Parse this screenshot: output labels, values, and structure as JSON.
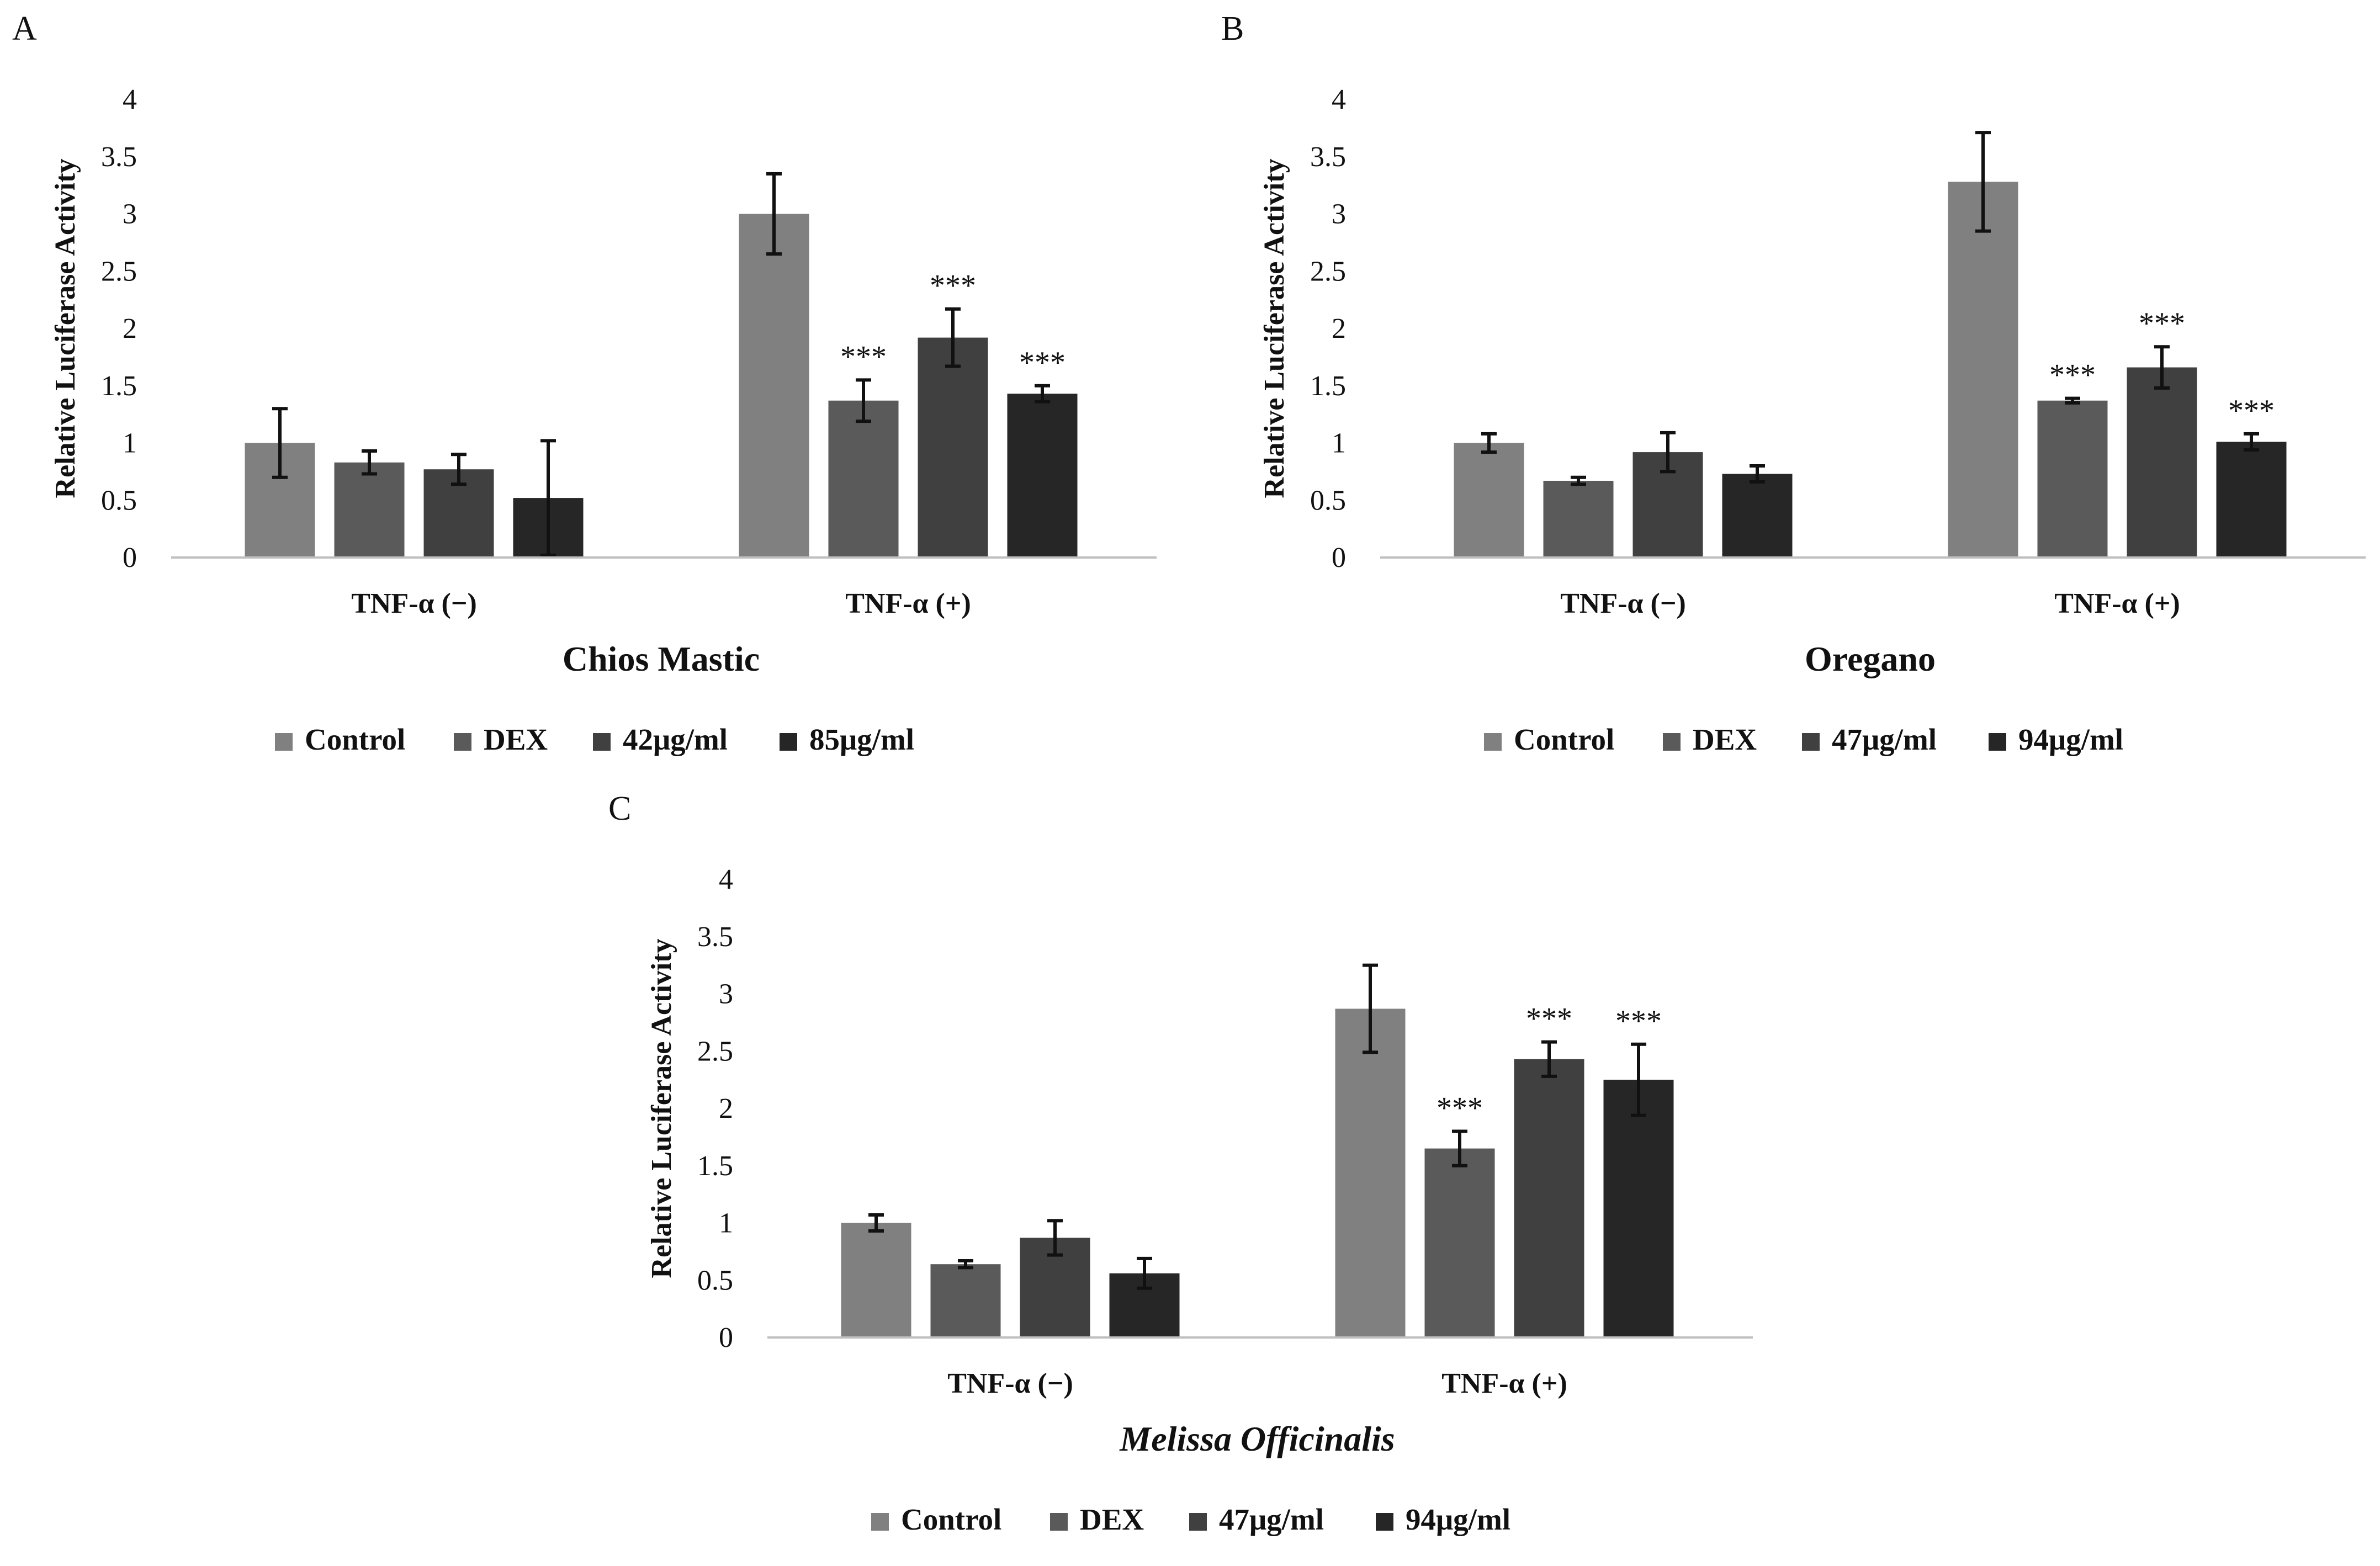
{
  "colors": {
    "Control": "#808080",
    "DEX": "#5a5a5a",
    "Dose1": "#404040",
    "Dose2": "#262626",
    "axis": "#bfbfbf",
    "text": "#111111"
  },
  "chart_data": [
    {
      "type": "bar",
      "panel": "A",
      "title": "Chios Mastic",
      "title_italic": false,
      "ylabel": "Relative Luciferase Activity",
      "ylim": [
        0,
        4
      ],
      "yticks": [
        "0",
        "0.5",
        "1",
        "1.5",
        "2",
        "2.5",
        "3",
        "3.5",
        "4"
      ],
      "categories": [
        "TNF-α (−)",
        "TNF-α (+)"
      ],
      "legend_position": "bottom",
      "series": [
        {
          "name": "Control",
          "values": [
            1.0,
            3.0
          ],
          "errors": [
            0.3,
            0.35
          ],
          "stars": [
            "",
            ""
          ]
        },
        {
          "name": "DEX",
          "values": [
            0.83,
            1.37
          ],
          "errors": [
            0.1,
            0.18
          ],
          "stars": [
            "",
            "***"
          ]
        },
        {
          "name": "42μg/ml",
          "values": [
            0.77,
            1.92
          ],
          "errors": [
            0.13,
            0.25
          ],
          "stars": [
            "",
            "***"
          ]
        },
        {
          "name": "85μg/ml",
          "values": [
            0.52,
            1.43
          ],
          "errors": [
            0.5,
            0.07
          ],
          "stars": [
            "",
            "***"
          ]
        }
      ]
    },
    {
      "type": "bar",
      "panel": "B",
      "title": "Oregano",
      "title_italic": false,
      "ylabel": "Relative Luciferase Activity",
      "ylim": [
        0,
        4
      ],
      "yticks": [
        "0",
        "0.5",
        "1",
        "1.5",
        "2",
        "2.5",
        "3",
        "3.5",
        "4"
      ],
      "categories": [
        "TNF-α (−)",
        "TNF-α (+)"
      ],
      "legend_position": "bottom",
      "series": [
        {
          "name": "Control",
          "values": [
            1.0,
            3.28
          ],
          "errors": [
            0.08,
            0.43
          ],
          "stars": [
            "",
            ""
          ]
        },
        {
          "name": "DEX",
          "values": [
            0.67,
            1.37
          ],
          "errors": [
            0.03,
            0.02
          ],
          "stars": [
            "",
            "***"
          ]
        },
        {
          "name": "47μg/ml",
          "values": [
            0.92,
            1.66
          ],
          "errors": [
            0.17,
            0.18
          ],
          "stars": [
            "",
            "***"
          ]
        },
        {
          "name": "94μg/ml",
          "values": [
            0.73,
            1.01
          ],
          "errors": [
            0.07,
            0.07
          ],
          "stars": [
            "",
            "***"
          ]
        }
      ]
    },
    {
      "type": "bar",
      "panel": "C",
      "title": "Melissa Officinalis",
      "title_italic": true,
      "ylabel": "Relative Luciferase Activity",
      "ylim": [
        0,
        4
      ],
      "yticks": [
        "0",
        "0.5",
        "1",
        "1.5",
        "2",
        "2.5",
        "3",
        "3.5",
        "4"
      ],
      "categories": [
        "TNF-α (−)",
        "TNF-α (+)"
      ],
      "legend_position": "bottom",
      "series": [
        {
          "name": "Control",
          "values": [
            1.0,
            2.87
          ],
          "errors": [
            0.07,
            0.38
          ],
          "stars": [
            "",
            ""
          ]
        },
        {
          "name": "DEX",
          "values": [
            0.64,
            1.65
          ],
          "errors": [
            0.03,
            0.15
          ],
          "stars": [
            "",
            "***"
          ]
        },
        {
          "name": "47μg/ml",
          "values": [
            0.87,
            2.43
          ],
          "errors": [
            0.15,
            0.15
          ],
          "stars": [
            "",
            "***"
          ]
        },
        {
          "name": "94μg/ml",
          "values": [
            0.56,
            2.25
          ],
          "errors": [
            0.13,
            0.31
          ],
          "stars": [
            "",
            "***"
          ]
        }
      ]
    }
  ]
}
